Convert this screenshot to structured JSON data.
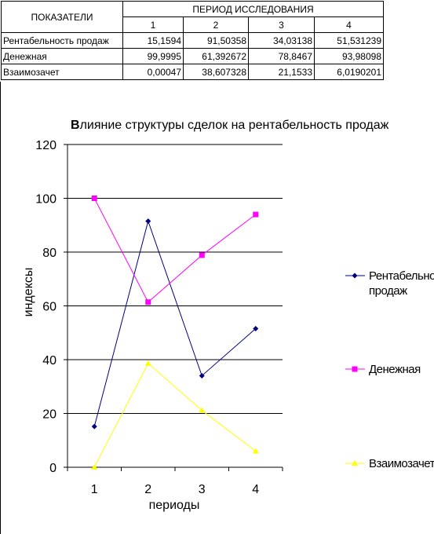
{
  "table": {
    "header_left": "ПОКАЗАТЕЛИ",
    "header_group": "ПЕРИОД ИССЛЕДОВАНИЯ",
    "columns": [
      "1",
      "2",
      "3",
      "4"
    ],
    "rows": [
      {
        "label": "Рентабельность продаж",
        "values": [
          "15,1594",
          "91,50358",
          "34,03138",
          "51,531239"
        ]
      },
      {
        "label": "Денежная",
        "values": [
          "99,9995",
          "61,392672",
          "78,8467",
          "93,98098"
        ]
      },
      {
        "label": "Взаимозачет",
        "values": [
          "0,00047",
          "38,607328",
          "21,1533",
          "6,0190201"
        ]
      }
    ]
  },
  "chart_data": {
    "type": "line",
    "title_bold_prefix": "В",
    "title_rest": "лияние структуры сделок на рентабельность продаж",
    "xlabel": "периоды",
    "ylabel": "индексы",
    "categories": [
      "1",
      "2",
      "3",
      "4"
    ],
    "ylim": [
      0,
      120
    ],
    "yticks": [
      "0",
      "20",
      "40",
      "60",
      "80",
      "100",
      "120"
    ],
    "grid": true,
    "legend_position": "right",
    "series": [
      {
        "name_lines": [
          "Рентабельность",
          "продаж"
        ],
        "values": [
          15.1594,
          91.50358,
          34.03138,
          51.531239
        ],
        "color": "#000080",
        "marker": "diamond"
      },
      {
        "name_lines": [
          "Денежная"
        ],
        "values": [
          99.9995,
          61.392672,
          78.8467,
          93.98098
        ],
        "color": "#ff00ff",
        "marker": "square"
      },
      {
        "name_lines": [
          "Взаимозачет"
        ],
        "values": [
          0.00047,
          38.607328,
          21.1533,
          6.0190201
        ],
        "color": "#ffff00",
        "marker": "triangle"
      }
    ]
  }
}
